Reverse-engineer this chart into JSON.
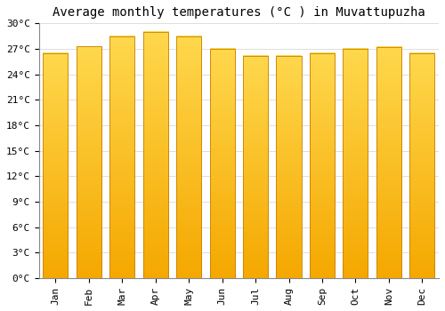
{
  "title": "Average monthly temperatures (°C ) in Muvattupuzha",
  "months": [
    "Jan",
    "Feb",
    "Mar",
    "Apr",
    "May",
    "Jun",
    "Jul",
    "Aug",
    "Sep",
    "Oct",
    "Nov",
    "Dec"
  ],
  "values": [
    26.5,
    27.3,
    28.5,
    29.0,
    28.5,
    27.0,
    26.2,
    26.2,
    26.5,
    27.0,
    27.2,
    26.5
  ],
  "bar_color_bottom": "#F5A800",
  "bar_color_top": "#FFD84D",
  "bar_edge_color": "#C88000",
  "ylim": [
    0,
    30
  ],
  "yticks": [
    0,
    3,
    6,
    9,
    12,
    15,
    18,
    21,
    24,
    27,
    30
  ],
  "ytick_labels": [
    "0°C",
    "3°C",
    "6°C",
    "9°C",
    "12°C",
    "15°C",
    "18°C",
    "21°C",
    "24°C",
    "27°C",
    "30°C"
  ],
  "bg_color": "#FFFFFF",
  "grid_color": "#DDDDDD",
  "title_fontsize": 10,
  "tick_fontsize": 8,
  "font_family": "monospace",
  "bar_width": 0.75
}
